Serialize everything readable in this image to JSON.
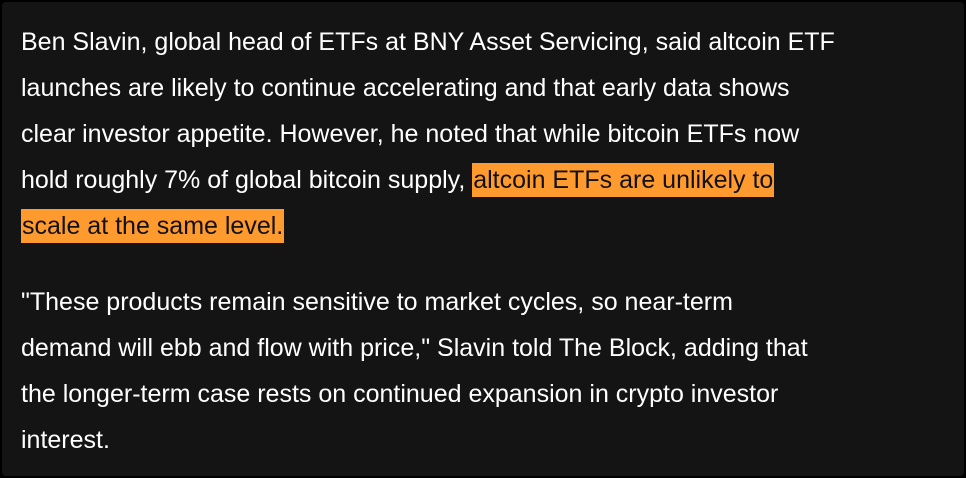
{
  "article": {
    "paragraph1": {
      "lines": [
        "Ben Slavin, global head of ETFs at BNY Asset Servicing, said altcoin ETF",
        "launches are likely to continue accelerating and that early data shows",
        "clear investor appetite. However, he noted that while bitcoin ETFs now",
        "hold roughly 7% of global bitcoin supply, "
      ],
      "highlight_line4": "altcoin ETFs are unlikely to",
      "highlight_line5": "scale at the same level."
    },
    "paragraph2": {
      "lines": [
        "\"These products remain sensitive to market cycles, so near-term",
        "demand will ebb and flow with price,\" Slavin told The Block, adding that",
        "the longer-term case rests on continued expansion in crypto investor",
        "interest."
      ]
    },
    "colors": {
      "background": "#141414",
      "highlight": "#ff9a2e",
      "text": "#ffffff"
    }
  }
}
